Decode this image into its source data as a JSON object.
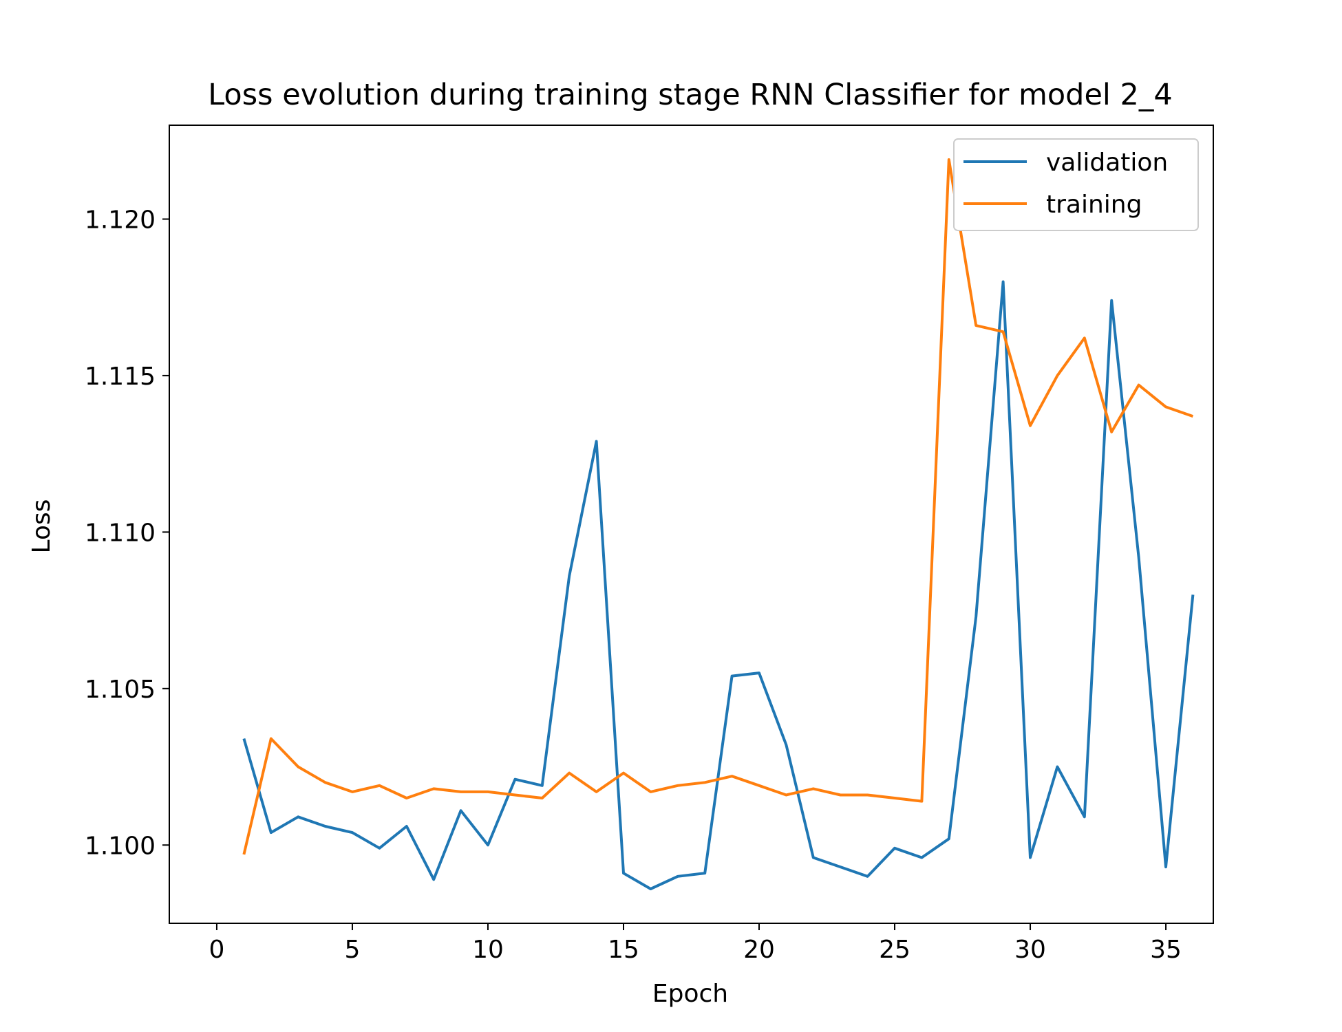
{
  "chart_data": {
    "type": "line",
    "title": "Loss evolution during training stage RNN Classifier for model 2_4",
    "xlabel": "Epoch",
    "ylabel": "Loss",
    "xlim": [
      -1.75,
      36.75
    ],
    "ylim": [
      1.0975,
      1.123
    ],
    "xticks": [
      0,
      5,
      10,
      15,
      20,
      25,
      30,
      35
    ],
    "yticks": [
      1.1,
      1.105,
      1.11,
      1.115,
      1.12
    ],
    "ytick_labels": [
      "1.100",
      "1.105",
      "1.110",
      "1.115",
      "1.120"
    ],
    "legend_position": "upper right",
    "x": [
      1,
      2,
      3,
      4,
      5,
      6,
      7,
      8,
      9,
      10,
      11,
      12,
      13,
      14,
      15,
      16,
      17,
      18,
      19,
      20,
      21,
      22,
      23,
      24,
      25,
      26,
      27,
      28,
      29,
      30,
      31,
      32,
      33,
      34,
      35,
      36
    ],
    "series": [
      {
        "name": "validation",
        "color": "#1f77b4",
        "values": [
          1.1034,
          1.1004,
          1.1009,
          1.1006,
          1.1004,
          1.0999,
          1.1006,
          1.0989,
          1.1011,
          1.1,
          1.1021,
          1.1019,
          1.1086,
          1.1129,
          1.0991,
          1.0986,
          1.099,
          1.0991,
          1.1054,
          1.1055,
          1.1032,
          1.0996,
          1.0993,
          1.099,
          1.0999,
          1.0996,
          1.1002,
          1.1073,
          1.118,
          1.0996,
          1.1025,
          1.1009,
          1.1174,
          1.1092,
          1.0993,
          1.108
        ]
      },
      {
        "name": "training",
        "color": "#ff7f0e",
        "values": [
          1.0997,
          1.1034,
          1.1025,
          1.102,
          1.1017,
          1.1019,
          1.1015,
          1.1018,
          1.1017,
          1.1017,
          1.1016,
          1.1015,
          1.1023,
          1.1017,
          1.1023,
          1.1017,
          1.1019,
          1.102,
          1.1022,
          1.1019,
          1.1016,
          1.1018,
          1.1016,
          1.1016,
          1.1015,
          1.1014,
          1.1219,
          1.1166,
          1.1164,
          1.1134,
          1.115,
          1.1162,
          1.1132,
          1.1147,
          1.114,
          1.1137
        ]
      }
    ]
  }
}
